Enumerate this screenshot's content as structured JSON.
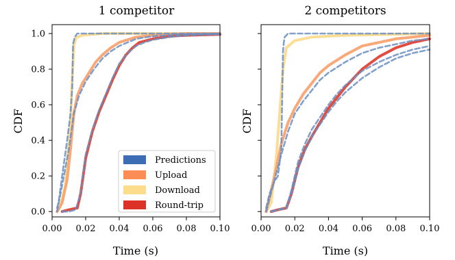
{
  "chart_data": [
    {
      "type": "line",
      "title": "1 competitor",
      "xlabel": "Time (s)",
      "ylabel": "CDF",
      "xlim": [
        0.0,
        0.1
      ],
      "ylim": [
        -0.03,
        1.05
      ],
      "xticks": [
        "0.00",
        "0.02",
        "0.04",
        "0.06",
        "0.08",
        "0.10"
      ],
      "yticks": [
        "0.0",
        "0.2",
        "0.4",
        "0.6",
        "0.8",
        "1.0"
      ],
      "grid": false,
      "legend_position": "bottom-right",
      "series": [
        {
          "name": "Download",
          "style": "measured",
          "x": [
            0.003,
            0.005,
            0.008,
            0.011,
            0.012,
            0.013,
            0.014,
            0.015,
            0.018,
            0.03,
            0.1
          ],
          "y": [
            0.0,
            0.03,
            0.15,
            0.5,
            0.75,
            0.93,
            0.97,
            0.98,
            0.99,
            1.0,
            1.0
          ]
        },
        {
          "name": "Upload",
          "style": "measured",
          "x": [
            0.003,
            0.006,
            0.009,
            0.011,
            0.013,
            0.015,
            0.018,
            0.022,
            0.026,
            0.03,
            0.035,
            0.04,
            0.05,
            0.06,
            0.08,
            0.1
          ],
          "y": [
            0.0,
            0.05,
            0.18,
            0.35,
            0.55,
            0.65,
            0.72,
            0.78,
            0.84,
            0.88,
            0.92,
            0.95,
            0.98,
            0.99,
            1.0,
            1.0
          ]
        },
        {
          "name": "Round-trip",
          "style": "measured",
          "x": [
            0.006,
            0.01,
            0.015,
            0.017,
            0.02,
            0.024,
            0.028,
            0.032,
            0.036,
            0.04,
            0.044,
            0.048,
            0.052,
            0.06,
            0.07,
            0.08,
            0.1
          ],
          "y": [
            0.0,
            0.01,
            0.02,
            0.1,
            0.3,
            0.45,
            0.56,
            0.65,
            0.74,
            0.82,
            0.88,
            0.92,
            0.95,
            0.97,
            0.985,
            0.99,
            0.995
          ]
        },
        {
          "name": "Predictions",
          "style": "prediction",
          "x": [
            0.003,
            0.004,
            0.006,
            0.009,
            0.011,
            0.012,
            0.0125,
            0.013,
            0.0135,
            0.015,
            0.1
          ],
          "y": [
            0.02,
            0.06,
            0.2,
            0.4,
            0.55,
            0.7,
            0.94,
            0.96,
            0.98,
            1.0,
            1.0
          ]
        },
        {
          "name": "Predictions",
          "style": "prediction",
          "x": [
            0.003,
            0.007,
            0.01,
            0.013,
            0.016,
            0.02,
            0.025,
            0.03,
            0.035,
            0.04,
            0.05,
            0.06,
            0.08,
            0.1
          ],
          "y": [
            0.0,
            0.2,
            0.35,
            0.55,
            0.65,
            0.73,
            0.8,
            0.86,
            0.9,
            0.93,
            0.97,
            0.985,
            0.995,
            1.0
          ]
        },
        {
          "name": "Predictions",
          "style": "prediction",
          "x": [
            0.006,
            0.01,
            0.014,
            0.017,
            0.02,
            0.024,
            0.028,
            0.032,
            0.036,
            0.04,
            0.045,
            0.05,
            0.055,
            0.06,
            0.07,
            0.08,
            0.1
          ],
          "y": [
            0.0,
            0.0,
            0.01,
            0.1,
            0.32,
            0.46,
            0.57,
            0.66,
            0.75,
            0.83,
            0.89,
            0.93,
            0.95,
            0.965,
            0.98,
            0.99,
            0.995
          ]
        }
      ]
    },
    {
      "type": "line",
      "title": "2 competitors",
      "xlabel": "Time (s)",
      "ylabel": "CDF",
      "xlim": [
        0.0,
        0.1
      ],
      "ylim": [
        -0.03,
        1.05
      ],
      "xticks": [
        "0.00",
        "0.02",
        "0.04",
        "0.06",
        "0.08",
        "0.10"
      ],
      "yticks": [
        "0.0",
        "0.2",
        "0.4",
        "0.6",
        "0.8",
        "1.0"
      ],
      "grid": false,
      "series": [
        {
          "name": "Download",
          "style": "measured",
          "x": [
            0.003,
            0.006,
            0.009,
            0.011,
            0.013,
            0.015,
            0.02,
            0.03,
            0.05,
            0.1
          ],
          "y": [
            0.0,
            0.05,
            0.3,
            0.55,
            0.8,
            0.92,
            0.96,
            0.98,
            0.99,
            1.0
          ]
        },
        {
          "name": "Upload",
          "style": "measured",
          "x": [
            0.003,
            0.008,
            0.012,
            0.016,
            0.02,
            0.025,
            0.03,
            0.035,
            0.04,
            0.05,
            0.06,
            0.07,
            0.08,
            0.09,
            0.1
          ],
          "y": [
            0.0,
            0.2,
            0.38,
            0.5,
            0.58,
            0.66,
            0.72,
            0.78,
            0.82,
            0.88,
            0.93,
            0.95,
            0.97,
            0.98,
            0.99
          ]
        },
        {
          "name": "Round-trip",
          "style": "measured",
          "x": [
            0.006,
            0.01,
            0.015,
            0.018,
            0.022,
            0.026,
            0.03,
            0.035,
            0.04,
            0.045,
            0.05,
            0.06,
            0.07,
            0.08,
            0.09,
            0.1
          ],
          "y": [
            0.0,
            0.01,
            0.02,
            0.1,
            0.25,
            0.35,
            0.42,
            0.5,
            0.58,
            0.64,
            0.7,
            0.8,
            0.87,
            0.92,
            0.95,
            0.97
          ]
        },
        {
          "name": "Predictions",
          "style": "prediction",
          "x": [
            0.003,
            0.005,
            0.008,
            0.01,
            0.012,
            0.013,
            0.0135,
            0.014,
            0.016,
            0.1
          ],
          "y": [
            0.02,
            0.1,
            0.17,
            0.2,
            0.35,
            0.9,
            0.95,
            0.98,
            1.0,
            1.0
          ]
        },
        {
          "name": "Predictions",
          "style": "prediction",
          "x": [
            0.003,
            0.008,
            0.012,
            0.016,
            0.02,
            0.025,
            0.03,
            0.035,
            0.04,
            0.05,
            0.06,
            0.07,
            0.08,
            0.09,
            0.1
          ],
          "y": [
            0.0,
            0.18,
            0.32,
            0.45,
            0.55,
            0.62,
            0.68,
            0.74,
            0.78,
            0.84,
            0.89,
            0.92,
            0.94,
            0.96,
            0.97
          ]
        },
        {
          "name": "Predictions",
          "style": "prediction",
          "x": [
            0.006,
            0.01,
            0.015,
            0.018,
            0.022,
            0.026,
            0.03,
            0.035,
            0.04,
            0.045,
            0.05,
            0.06,
            0.07,
            0.08,
            0.09,
            0.1
          ],
          "y": [
            0.0,
            0.01,
            0.02,
            0.12,
            0.28,
            0.38,
            0.46,
            0.53,
            0.6,
            0.66,
            0.71,
            0.79,
            0.84,
            0.88,
            0.91,
            0.93
          ]
        },
        {
          "name": "Predictions",
          "style": "prediction",
          "x": [
            0.006,
            0.01,
            0.015,
            0.018,
            0.022,
            0.026,
            0.03,
            0.035,
            0.04,
            0.045,
            0.05,
            0.06,
            0.07,
            0.08,
            0.09,
            0.1
          ],
          "y": [
            0.0,
            0.01,
            0.02,
            0.1,
            0.24,
            0.34,
            0.42,
            0.49,
            0.56,
            0.62,
            0.67,
            0.75,
            0.81,
            0.86,
            0.89,
            0.91
          ]
        }
      ]
    }
  ],
  "legend": {
    "items": [
      {
        "label": "Predictions",
        "color": "#3d6db4"
      },
      {
        "label": "Upload",
        "color": "#fd8d55"
      },
      {
        "label": "Download",
        "color": "#fddc8c"
      },
      {
        "label": "Round-trip",
        "color": "#dc3228"
      }
    ]
  },
  "colors": {
    "Predictions": "#6b8fc2",
    "Upload": "#f8a06a",
    "Download": "#fcd98a",
    "Round-trip": "#de3a2c"
  }
}
